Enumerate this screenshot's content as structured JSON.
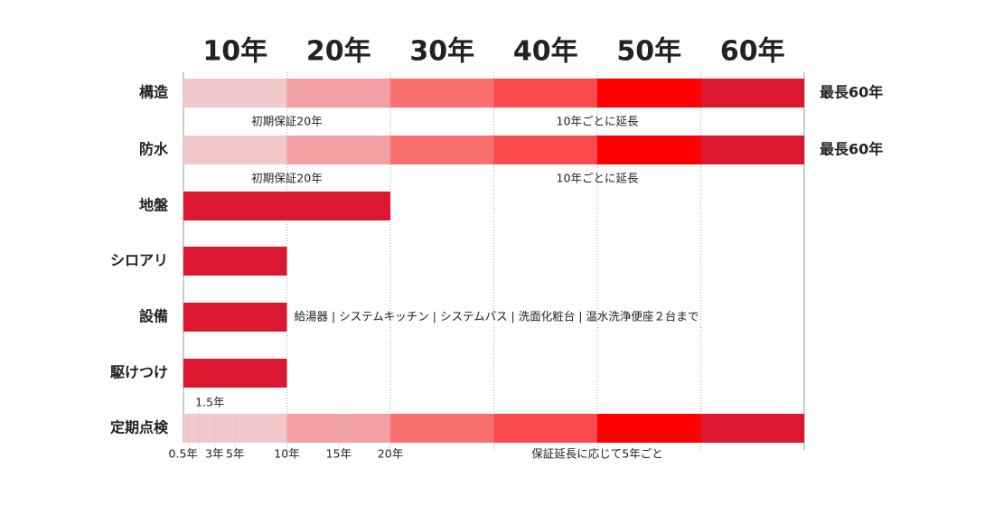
{
  "chart_data": {
    "type": "timeline",
    "xlim": [
      0,
      60
    ],
    "xticks": [
      {
        "value": 10,
        "label": "10年"
      },
      {
        "value": 20,
        "label": "20年"
      },
      {
        "value": 30,
        "label": "30年"
      },
      {
        "value": 40,
        "label": "40年"
      },
      {
        "value": 50,
        "label": "50年"
      },
      {
        "value": 60,
        "label": "60年"
      }
    ],
    "segment_colors": [
      "#f2c9ca",
      "#f2a0a3",
      "#fb7070",
      "#fb4a4d",
      "#fe0000",
      "#dc1730"
    ],
    "color": "#dc1730",
    "rows": [
      {
        "label": "構造",
        "values": [
          10,
          10,
          10,
          10,
          10,
          10
        ],
        "right_label": "最長60年",
        "notes": [
          "初期保証20年",
          "10年ごとに延長"
        ]
      },
      {
        "label": "防水",
        "values": [
          10,
          10,
          10,
          10,
          10,
          10
        ],
        "right_label": "最長60年",
        "notes": [
          "初期保証20年",
          "10年ごとに延長"
        ]
      },
      {
        "label": "地盤",
        "values": [
          20
        ]
      },
      {
        "label": "シロアリ",
        "values": [
          10
        ]
      },
      {
        "label": "設備",
        "values": [
          10
        ],
        "side_note": "給湯器 | システムキッチン | システムバス | 洗面化粧台 | 温水洗浄便座２台まで"
      },
      {
        "label": "駆けつけ",
        "values": [
          10
        ]
      },
      {
        "label": "定期点検",
        "values": [
          10,
          10,
          10,
          10,
          10,
          10
        ],
        "inspection_ticks": [
          {
            "value": 0.5,
            "label": "0.5年"
          },
          {
            "value": 1.5,
            "label": "1.5年"
          },
          {
            "value": 3,
            "label": "3年"
          },
          {
            "value": 5,
            "label": "5年"
          },
          {
            "value": 10,
            "label": "10年"
          },
          {
            "value": 15,
            "label": "15年"
          },
          {
            "value": 20,
            "label": "20年"
          }
        ],
        "extension_note": "保証延長に応じて5年ごと"
      }
    ]
  }
}
